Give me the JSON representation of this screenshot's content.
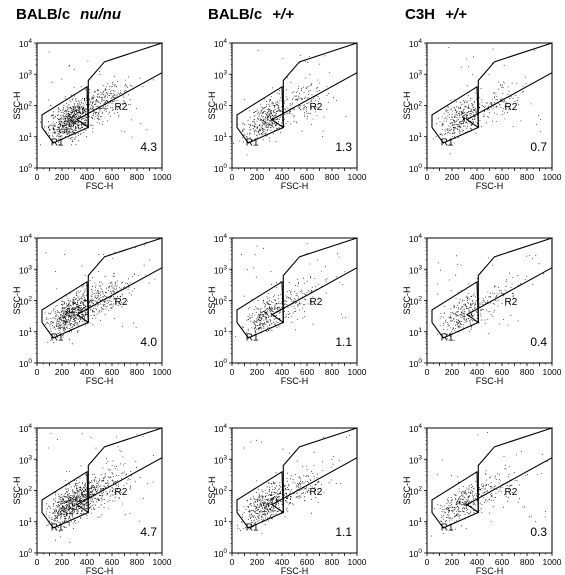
{
  "columns": [
    {
      "strain": "BALB/c",
      "genotype": "nu/nu"
    },
    {
      "strain": "BALB/c",
      "genotype": "+/+"
    },
    {
      "strain": "C3H",
      "genotype": "+/+"
    }
  ],
  "chart_data": {
    "type": "scatter",
    "xlabel": "FSC-H",
    "ylabel": "SSC-H",
    "xlim": [
      0,
      1000
    ],
    "ylim_log10": [
      0,
      4
    ],
    "x_ticks": [
      "0",
      "100",
      "200",
      "300",
      "400",
      "500",
      "600",
      "700",
      "800",
      "900",
      "1000"
    ],
    "y_ticks": [
      "0",
      "1",
      "2",
      "3",
      "4"
    ],
    "y_tick_base": "10",
    "regions": [
      "R1",
      "R2"
    ],
    "gate_R1": [
      [
        130,
        0.8
      ],
      [
        410,
        1.3
      ],
      [
        400,
        2.6
      ],
      [
        40,
        1.7
      ],
      [
        40,
        1.3
      ]
    ],
    "gate_R2": [
      [
        320,
        1.55
      ],
      [
        1000,
        3.05
      ],
      [
        1000,
        4.0
      ],
      [
        540,
        3.4
      ],
      [
        410,
        2.8
      ],
      [
        410,
        1.3
      ]
    ],
    "panels": [
      {
        "row": 1,
        "col": 1,
        "value": "4.3"
      },
      {
        "row": 1,
        "col": 2,
        "value": "1.3"
      },
      {
        "row": 1,
        "col": 3,
        "value": "0.7"
      },
      {
        "row": 2,
        "col": 1,
        "value": "4.0"
      },
      {
        "row": 2,
        "col": 2,
        "value": "1.1"
      },
      {
        "row": 2,
        "col": 3,
        "value": "0.4"
      },
      {
        "row": 3,
        "col": 1,
        "value": "4.7"
      },
      {
        "row": 3,
        "col": 2,
        "value": "1.1"
      },
      {
        "row": 3,
        "col": 3,
        "value": "0.3"
      }
    ]
  }
}
